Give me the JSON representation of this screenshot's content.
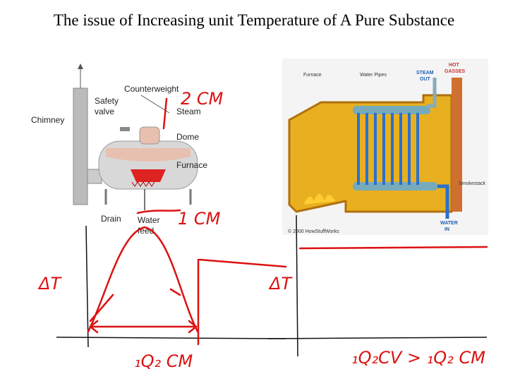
{
  "header": {
    "title": "The issue of Increasing unit Temperature of A Pure Substance"
  },
  "left_diagram": {
    "counterweight": "Counterweight",
    "safety_valve": [
      "Safety",
      "valve"
    ],
    "chimney": "Chimney",
    "steam": "Steam",
    "dome": "Dome",
    "furnace": "Furnace",
    "drain": "Drain",
    "water_feed": [
      "Water",
      "feed"
    ]
  },
  "right_diagram": {
    "furnace": "Furnace",
    "water_pipes": "Water Pipes",
    "steam_out": [
      "STEAM",
      "OUT"
    ],
    "hot_gasses": [
      "HOT",
      "GASSES"
    ],
    "smokestack": "Smokestack",
    "water_in": [
      "WATER",
      "IN"
    ],
    "credit": "© 2000 HowStuffWorks"
  },
  "annotations": {
    "dome_scale": "2 CM",
    "feed_scale": "1 CM",
    "delta_t_left": "ΔT",
    "delta_t_right": "ΔT",
    "heat_left": "₁Q₂ CM",
    "heat_right": "₁Q₂CV > ₁Q₂ CM"
  }
}
